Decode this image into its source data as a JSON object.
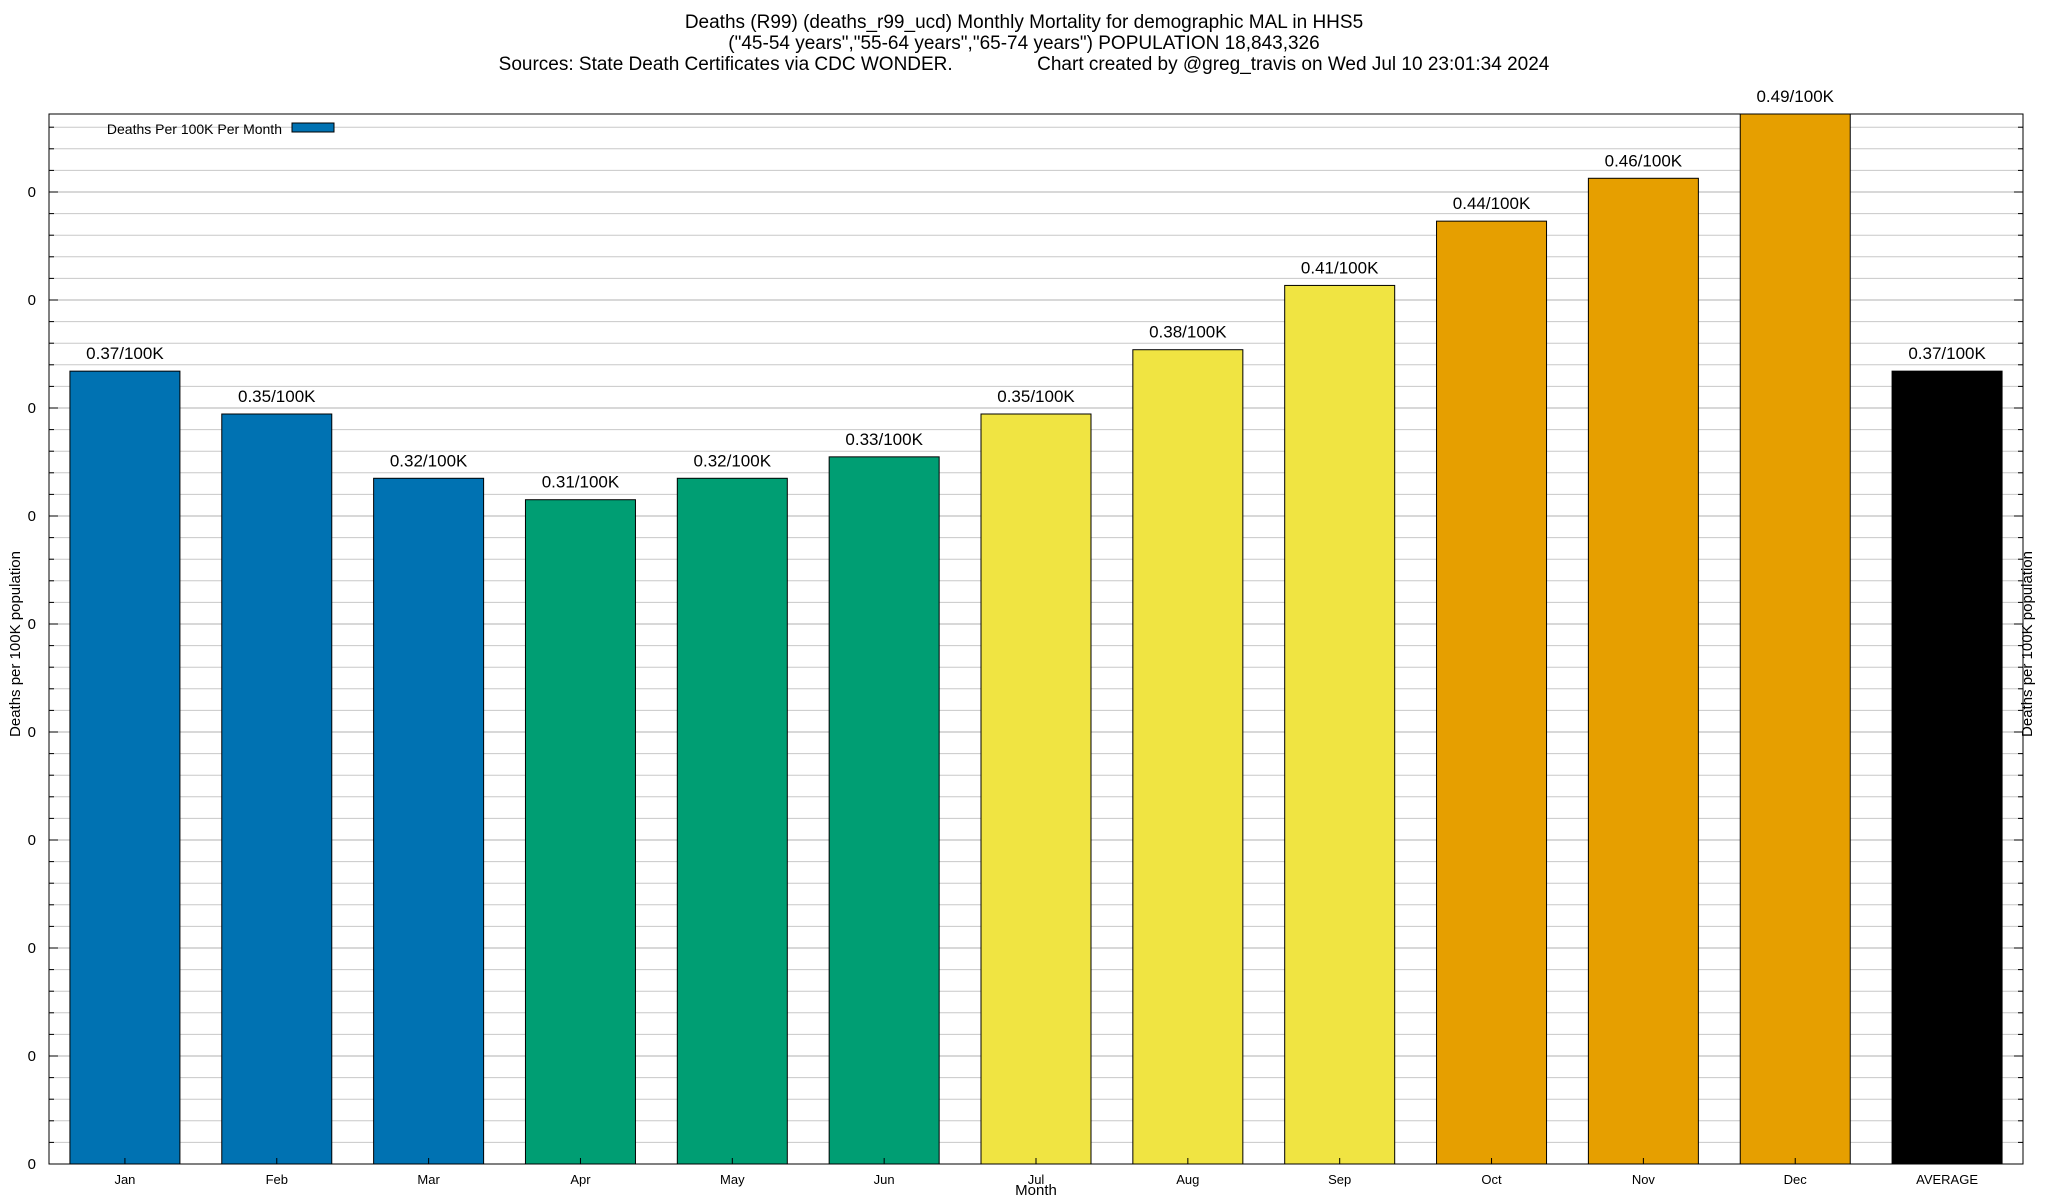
{
  "header": {
    "line1": "Deaths (R99) (deaths_r99_ucd) Monthly Mortality for demographic MAL in HHS5",
    "line2": "(\"45-54 years\",\"55-64 years\",\"65-74 years\") POPULATION 18,843,326",
    "line3": "Sources: State Death Certificates via CDC WONDER.                Chart created by @greg_travis on Wed Jul 10 23:01:34 2024"
  },
  "chart_data": {
    "type": "bar",
    "title": "Deaths (R99) (deaths_r99_ucd) Monthly Mortality for demographic MAL in HHS5",
    "xlabel": "Month",
    "ylabel": "Deaths per 100K population",
    "y2label": "Deaths per 100K population",
    "categories": [
      "Jan",
      "Feb",
      "Mar",
      "Apr",
      "May",
      "Jun",
      "Jul",
      "Aug",
      "Sep",
      "Oct",
      "Nov",
      "Dec",
      "AVERAGE"
    ],
    "series": [
      {
        "name": "Deaths Per 100K Per Month",
        "values": [
          0.37,
          0.35,
          0.32,
          0.31,
          0.32,
          0.33,
          0.35,
          0.38,
          0.41,
          0.44,
          0.46,
          0.49,
          0.37
        ]
      }
    ],
    "bar_colors": [
      "#0072b2",
      "#0072b2",
      "#0072b2",
      "#009e73",
      "#009e73",
      "#009e73",
      "#f0e442",
      "#f0e442",
      "#f0e442",
      "#e69f00",
      "#e69f00",
      "#e69f00",
      "#000000"
    ],
    "data_labels": [
      "0.37/100K",
      "0.35/100K",
      "0.32/100K",
      "0.31/100K",
      "0.32/100K",
      "0.33/100K",
      "0.35/100K",
      "0.38/100K",
      "0.41/100K",
      "0.44/100K",
      "0.46/100K",
      "0.49/100K",
      "0.37/100K"
    ],
    "y_tick_labels": [
      "0",
      "0",
      "0",
      "0",
      "0",
      "0",
      "0",
      "0",
      "0",
      "0"
    ],
    "ylim": [
      0,
      0.49
    ],
    "grid": true,
    "legend": {
      "label": "Deaths Per 100K Per Month",
      "position": "top-left",
      "color": "#0072b2"
    }
  }
}
